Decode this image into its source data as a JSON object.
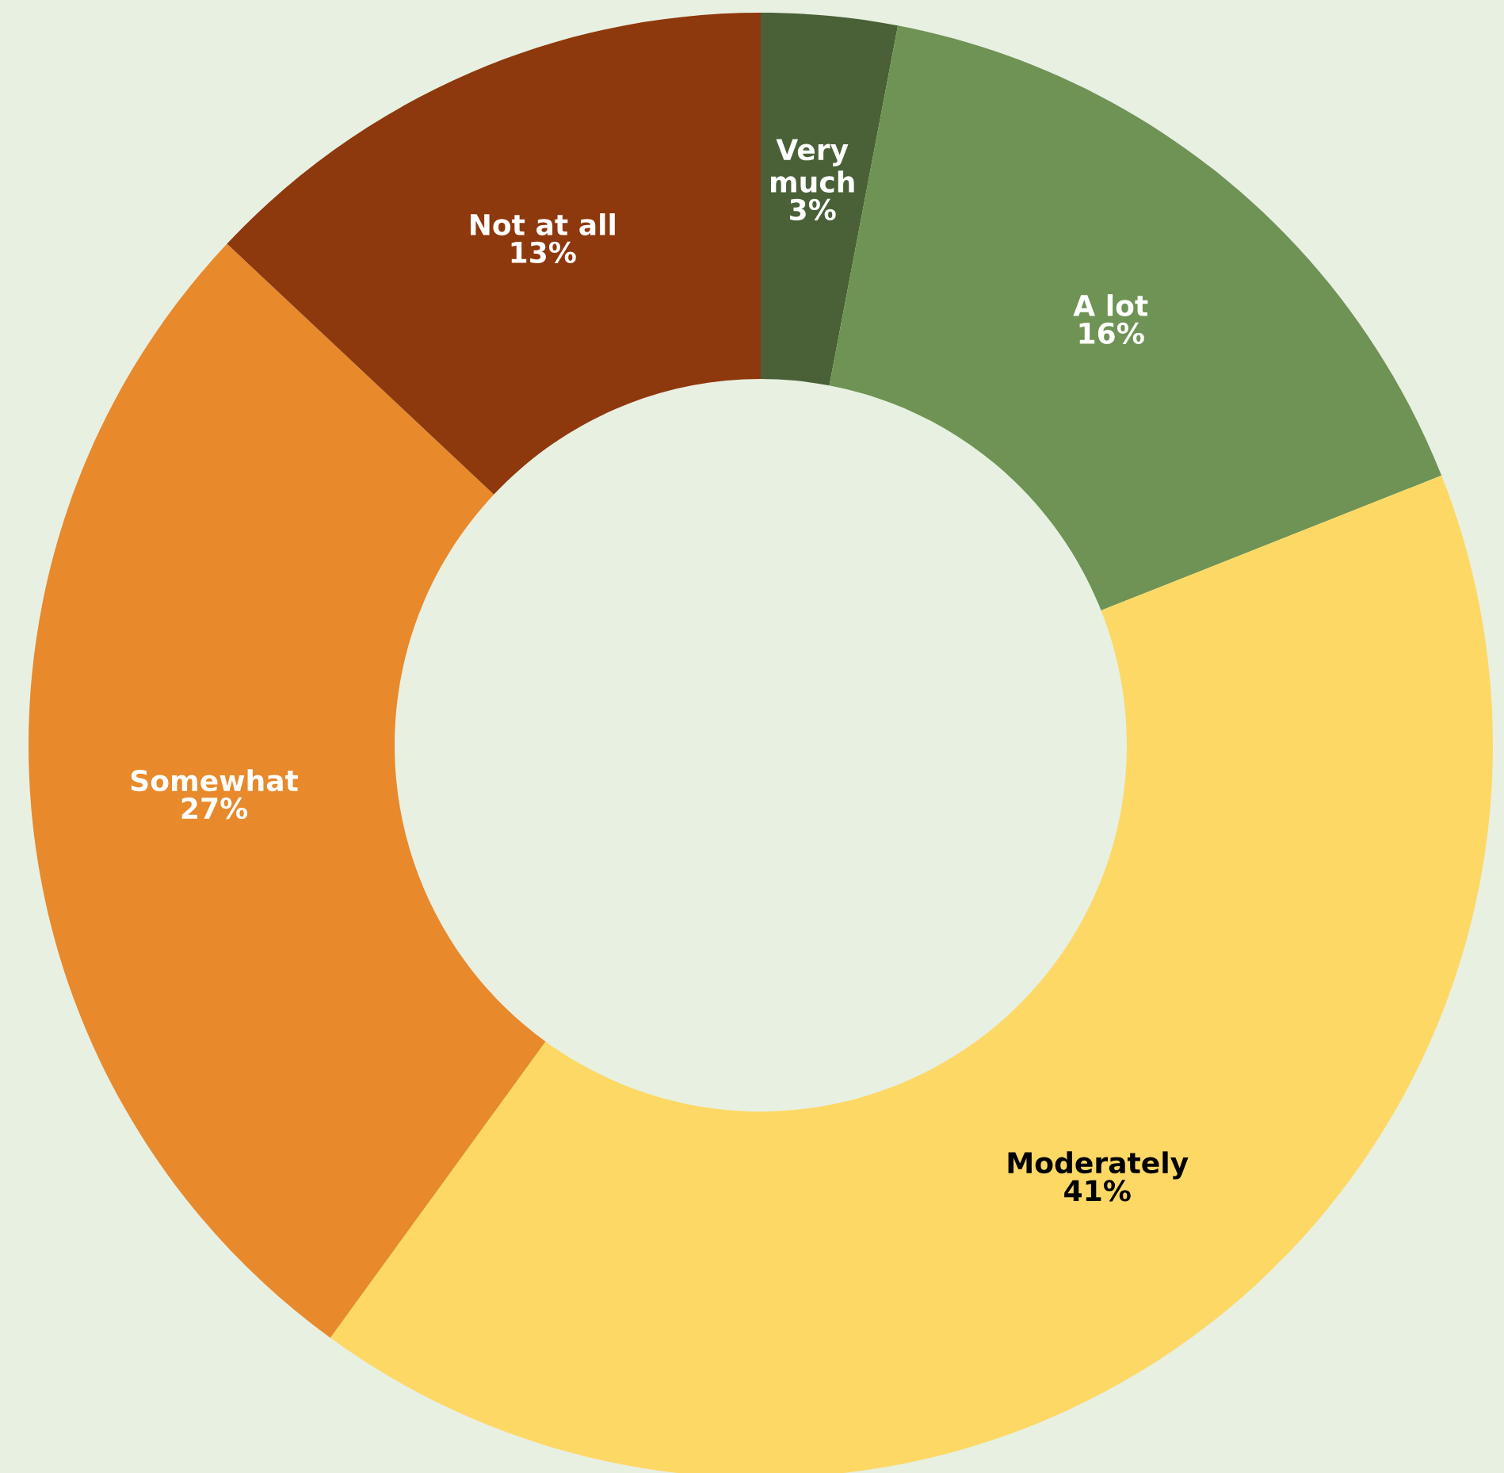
{
  "chart_data": {
    "type": "donut",
    "categories": [
      "Very much",
      "A lot",
      "Moderately",
      "Somewhat",
      "Not at all"
    ],
    "values": [
      3,
      16,
      41,
      27,
      13
    ],
    "colors": [
      "#4a6137",
      "#6e9354",
      "#fdd865",
      "#e8892b",
      "#8e380d"
    ],
    "value_labels": [
      "3%",
      "16%",
      "41%",
      "27%",
      "13%"
    ]
  }
}
